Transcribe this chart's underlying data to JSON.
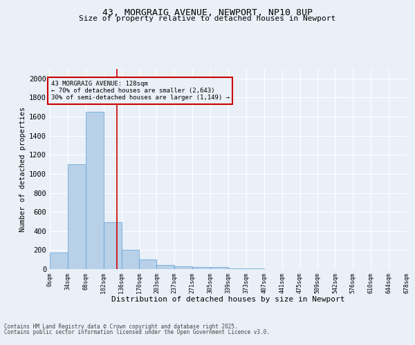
{
  "title_line1": "43, MORGRAIG AVENUE, NEWPORT, NP10 8UP",
  "title_line2": "Size of property relative to detached houses in Newport",
  "xlabel": "Distribution of detached houses by size in Newport",
  "ylabel": "Number of detached properties",
  "annotation_line1": "43 MORGRAIG AVENUE: 128sqm",
  "annotation_line2": "← 70% of detached houses are smaller (2,643)",
  "annotation_line3": "30% of semi-detached houses are larger (1,149) →",
  "footer_line1": "Contains HM Land Registry data © Crown copyright and database right 2025.",
  "footer_line2": "Contains public sector information licensed under the Open Government Licence v3.0.",
  "bin_edges": [
    0,
    34,
    68,
    102,
    136,
    170,
    203,
    237,
    271,
    305,
    339,
    373,
    407,
    441,
    475,
    509,
    542,
    576,
    610,
    644,
    678
  ],
  "bar_heights": [
    175,
    1100,
    1650,
    490,
    200,
    105,
    45,
    30,
    20,
    20,
    10,
    5,
    0,
    0,
    0,
    0,
    0,
    0,
    0,
    0
  ],
  "bar_color": "#b8d0e8",
  "bar_edgecolor": "#5a9fd4",
  "redline_x": 128,
  "ylim": [
    0,
    2100
  ],
  "yticks": [
    0,
    200,
    400,
    600,
    800,
    1000,
    1200,
    1400,
    1600,
    1800,
    2000
  ],
  "xlim": [
    0,
    678
  ],
  "tick_labels": [
    "0sqm",
    "34sqm",
    "68sqm",
    "102sqm",
    "136sqm",
    "170sqm",
    "203sqm",
    "237sqm",
    "271sqm",
    "305sqm",
    "339sqm",
    "373sqm",
    "407sqm",
    "441sqm",
    "475sqm",
    "509sqm",
    "542sqm",
    "576sqm",
    "610sqm",
    "644sqm",
    "678sqm"
  ],
  "annotation_box_color": "#cc0000",
  "background_color": "#eaf0f8",
  "grid_color": "#ffffff",
  "figsize": [
    6.0,
    5.0
  ],
  "dpi": 100
}
